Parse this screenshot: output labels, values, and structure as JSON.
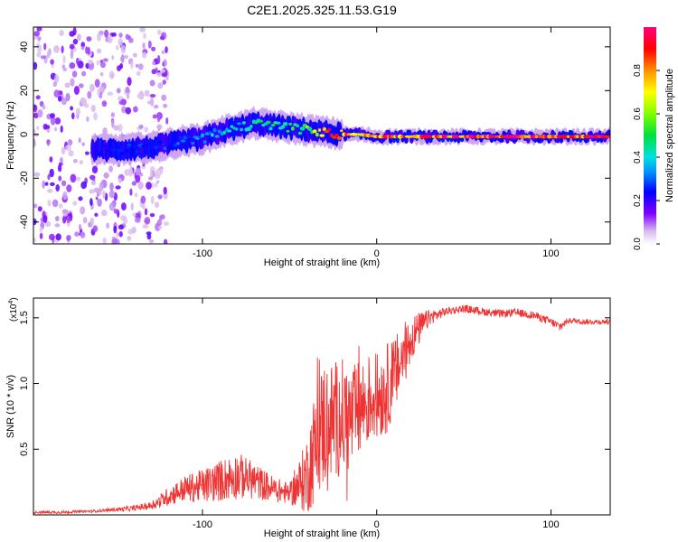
{
  "title": "C2E1.2025.325.11.53.G19",
  "chart_data": [
    {
      "type": "heatmap",
      "name": "spectrogram",
      "xlabel": "Height of straight line (km)",
      "ylabel": "Frequency (Hz)",
      "xlim": [
        -197,
        134
      ],
      "ylim": [
        -50,
        49
      ],
      "xticks": [
        -100,
        0,
        100
      ],
      "yticks": [
        -40,
        -20,
        0,
        20,
        40
      ],
      "ridge": {
        "x": [
          -163,
          -150,
          -130,
          -110,
          -100,
          -90,
          -80,
          -70,
          -60,
          -50,
          -40,
          -30,
          -20,
          -10,
          0,
          20,
          40,
          60,
          80,
          100,
          120,
          134
        ],
        "freq": [
          -7,
          -7,
          -6,
          -3,
          -2,
          1,
          3,
          5,
          4,
          3,
          2,
          1,
          0,
          0,
          -1,
          -1,
          -1,
          -1,
          -1,
          -1,
          -1,
          -1
        ],
        "amplitude": [
          0.25,
          0.25,
          0.28,
          0.32,
          0.35,
          0.42,
          0.45,
          0.48,
          0.5,
          0.52,
          0.58,
          0.85,
          0.9,
          0.7,
          0.85,
          0.9,
          0.95,
          0.97,
          1.0,
          0.9,
          0.95,
          0.97
        ]
      },
      "noise_region_x": [
        -197,
        -130
      ]
    },
    {
      "type": "colorbar",
      "name": "amplitude-colorbar",
      "label": "Normalized spectral amplitude",
      "range": [
        0,
        1
      ],
      "ticks": [
        "0.0",
        "0.2",
        "0.4",
        "0.6",
        "0.8"
      ]
    },
    {
      "type": "line",
      "name": "snr",
      "xlabel": "Height of straight line (km)",
      "ylabel": "SNR (10 * v/v)",
      "scale_label": "(x10",
      "scale_exp": "4",
      "xlim": [
        -197,
        134
      ],
      "ylim": [
        0,
        1.65
      ],
      "xticks": [
        -100,
        0,
        100
      ],
      "yticks": [
        "0.5",
        "1.0",
        "1.5"
      ],
      "color": "#ee3333",
      "x": [
        -197,
        -180,
        -160,
        -140,
        -130,
        -125,
        -120,
        -110,
        -100,
        -90,
        -80,
        -70,
        -60,
        -50,
        -45,
        -40,
        -35,
        -30,
        -25,
        -20,
        -15,
        -10,
        -5,
        0,
        5,
        10,
        15,
        20,
        30,
        40,
        50,
        60,
        70,
        80,
        90,
        100,
        105,
        110,
        120,
        134
      ],
      "y": [
        0.02,
        0.02,
        0.03,
        0.05,
        0.07,
        0.1,
        0.14,
        0.2,
        0.22,
        0.26,
        0.3,
        0.26,
        0.2,
        0.16,
        0.22,
        0.3,
        0.55,
        0.7,
        0.72,
        0.75,
        0.72,
        0.8,
        0.88,
        0.9,
        0.95,
        1.05,
        1.2,
        1.35,
        1.5,
        1.55,
        1.57,
        1.55,
        1.53,
        1.54,
        1.52,
        1.47,
        1.43,
        1.48,
        1.47,
        1.47
      ],
      "noise": [
        0.01,
        0.01,
        0.01,
        0.02,
        0.03,
        0.05,
        0.07,
        0.1,
        0.13,
        0.16,
        0.18,
        0.14,
        0.1,
        0.08,
        0.18,
        0.3,
        0.45,
        0.5,
        0.45,
        0.45,
        0.4,
        0.38,
        0.35,
        0.33,
        0.35,
        0.3,
        0.25,
        0.18,
        0.06,
        0.03,
        0.03,
        0.03,
        0.03,
        0.03,
        0.03,
        0.03,
        0.04,
        0.02,
        0.02,
        0.02
      ]
    }
  ]
}
